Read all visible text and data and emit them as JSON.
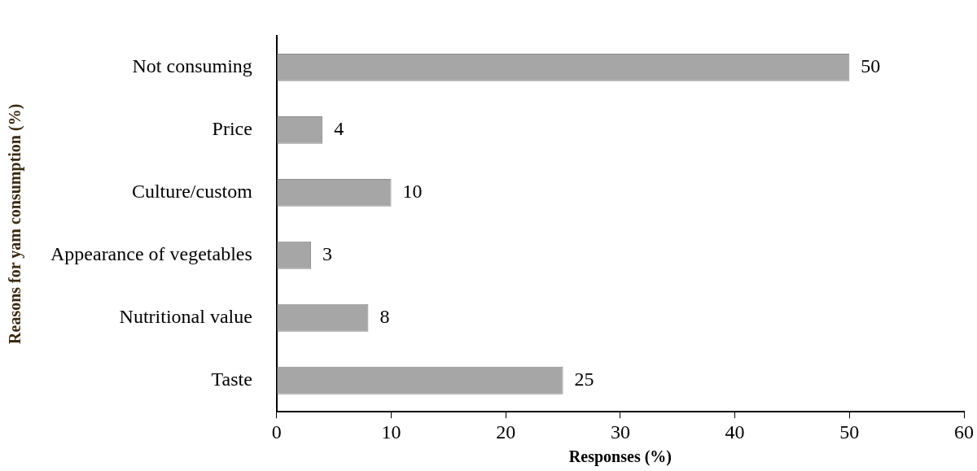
{
  "chart_data": {
    "type": "bar",
    "orientation": "horizontal",
    "xlabel": "Responses (%)",
    "ylabel": "Reasons for yam consumption (%)",
    "categories": [
      "Not consuming",
      "Price",
      "Culture/custom",
      "Appearance of vegetables",
      "Nutritional value",
      "Taste"
    ],
    "values": [
      50,
      4,
      10,
      3,
      8,
      25
    ],
    "color": "#a6a6a6",
    "xlim": [
      0,
      60
    ],
    "xticks": [
      0,
      10,
      20,
      30,
      40,
      50,
      60
    ],
    "data_labels": true,
    "legend": false
  }
}
